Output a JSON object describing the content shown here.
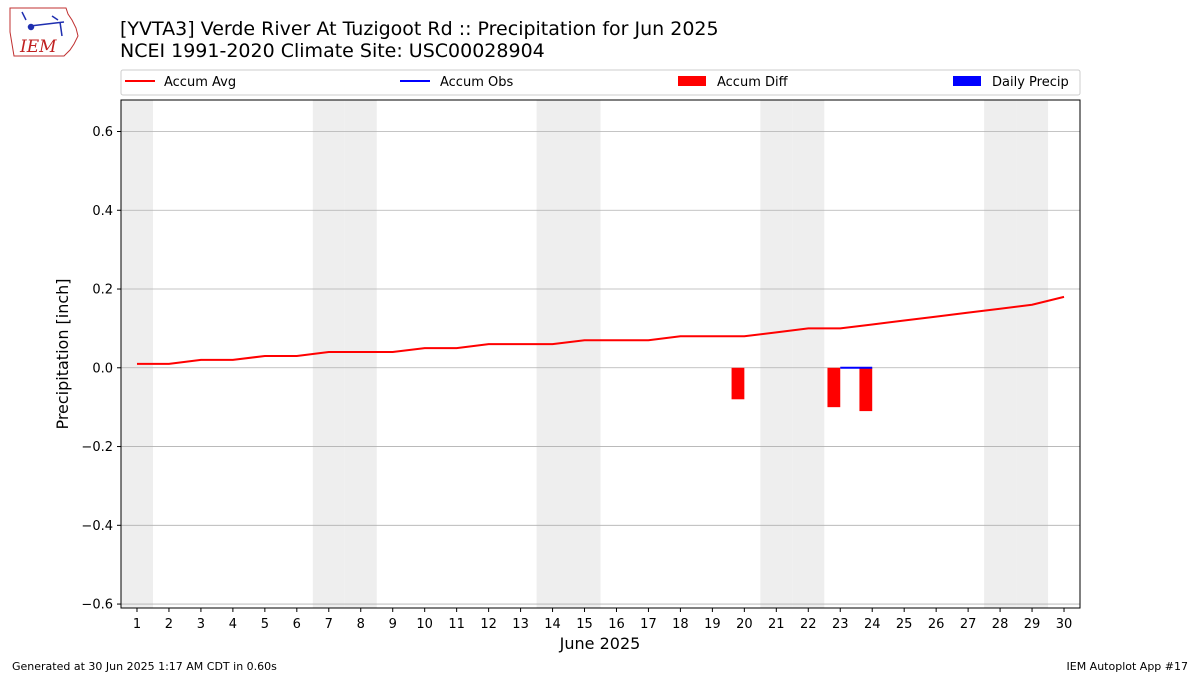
{
  "title_lines": [
    "[YVTA3] Verde River At Tuzigoot Rd :: Precipitation for Jun 2025",
    "NCEI 1991-2020 Climate Site: USC00028904"
  ],
  "logo": {
    "text": "IEM",
    "icon": "iowa-state-logo-icon"
  },
  "footer": {
    "left": "Generated at 30 Jun 2025 1:17 AM CDT in 0.60s",
    "right": "IEM Autoplot App #17"
  },
  "colors": {
    "accum_avg": "#ff0000",
    "accum_obs": "#0000ff",
    "accum_diff": "#ff0000",
    "daily_precip": "#0000ff",
    "weekend_shade": "#eeeeee",
    "grid": "#b0b0b0"
  },
  "chart_data": {
    "type": "line",
    "xlabel": "June 2025",
    "ylabel": "Precipitation [inch]",
    "xlim": [
      0.5,
      30.5
    ],
    "ylim": [
      -0.61,
      0.68
    ],
    "x_ticks": [
      1,
      2,
      3,
      4,
      5,
      6,
      7,
      8,
      9,
      10,
      11,
      12,
      13,
      14,
      15,
      16,
      17,
      18,
      19,
      20,
      21,
      22,
      23,
      24,
      25,
      26,
      27,
      28,
      29,
      30
    ],
    "y_ticks": [
      -0.6,
      -0.4,
      -0.2,
      0.0,
      0.2,
      0.4,
      0.6
    ],
    "y_tick_labels": [
      "−0.6",
      "−0.4",
      "−0.2",
      "0.0",
      "0.2",
      "0.4",
      "0.6"
    ],
    "grid": "horizontal",
    "legend_position": "top",
    "legend": [
      "Accum Avg",
      "Accum Obs",
      "Accum Diff",
      "Daily Precip"
    ],
    "weekend_days": [
      1,
      7,
      8,
      14,
      15,
      21,
      22,
      28,
      29
    ],
    "days": [
      1,
      2,
      3,
      4,
      5,
      6,
      7,
      8,
      9,
      10,
      11,
      12,
      13,
      14,
      15,
      16,
      17,
      18,
      19,
      20,
      21,
      22,
      23,
      24,
      25,
      26,
      27,
      28,
      29,
      30
    ],
    "accum_avg": [
      0.01,
      0.01,
      0.02,
      0.02,
      0.03,
      0.03,
      0.04,
      0.04,
      0.04,
      0.05,
      0.05,
      0.06,
      0.06,
      0.06,
      0.07,
      0.07,
      0.07,
      0.08,
      0.08,
      0.08,
      0.09,
      0.1,
      0.1,
      0.11,
      0.12,
      0.13,
      0.14,
      0.15,
      0.16,
      0.18
    ],
    "accum_obs": {
      "days": [
        23,
        24
      ],
      "values": [
        0.0,
        0.0
      ]
    },
    "accum_diff": {
      "days": [
        20,
        23,
        24
      ],
      "values": [
        -0.08,
        -0.1,
        -0.11
      ]
    },
    "daily_precip": {
      "days": [],
      "values": []
    }
  }
}
